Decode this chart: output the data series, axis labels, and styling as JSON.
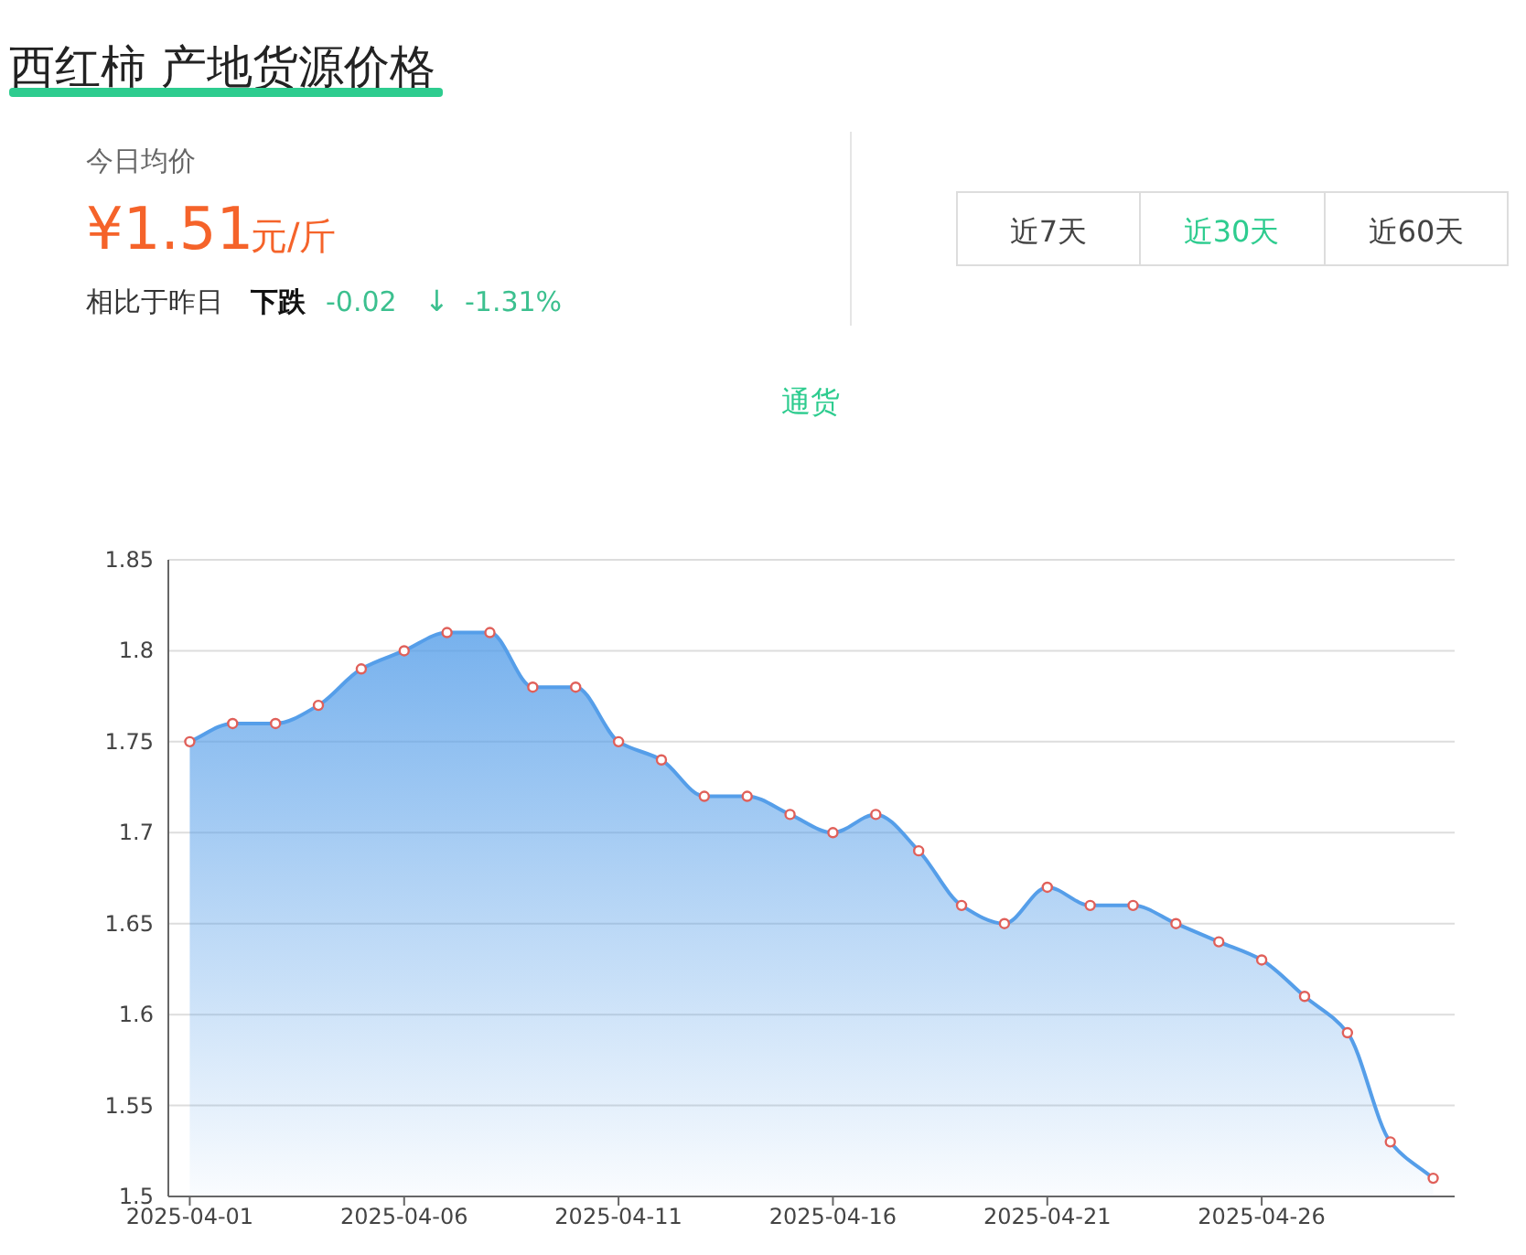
{
  "chart_data": {
    "type": "area",
    "title": "西红柿 产地货源价格",
    "subtitle": "通货",
    "annotations": [
      "今日均价",
      "¥1.51",
      "元/斤",
      "相比于昨日",
      "下跌",
      "-0.02",
      "↓",
      "-1.31%",
      "近7天",
      "近30天",
      "近60天"
    ],
    "categories": [
      "2025-04-01",
      null,
      null,
      null,
      null,
      "2025-04-06",
      null,
      null,
      null,
      null,
      "2025-04-11",
      null,
      null,
      null,
      null,
      "2025-04-16",
      null,
      null,
      null,
      null,
      "2025-04-21",
      null,
      null,
      null,
      null,
      "2025-04-26",
      null,
      null,
      null,
      null
    ],
    "values": [
      1.75,
      1.76,
      1.76,
      1.77,
      1.79,
      1.8,
      1.81,
      1.81,
      1.78,
      1.78,
      1.75,
      1.74,
      1.72,
      1.72,
      1.71,
      1.7,
      1.71,
      1.69,
      1.66,
      1.65,
      1.67,
      1.66,
      1.66,
      1.65,
      1.64,
      1.63,
      1.61,
      1.59,
      1.53,
      1.51
    ],
    "color": "#559ee9",
    "ylim": [
      1.5,
      1.85
    ],
    "yticks": [
      1.5,
      1.55,
      1.6,
      1.65,
      1.7,
      1.75,
      1.8,
      1.85
    ],
    "grid": "y",
    "marker": "circle"
  }
}
